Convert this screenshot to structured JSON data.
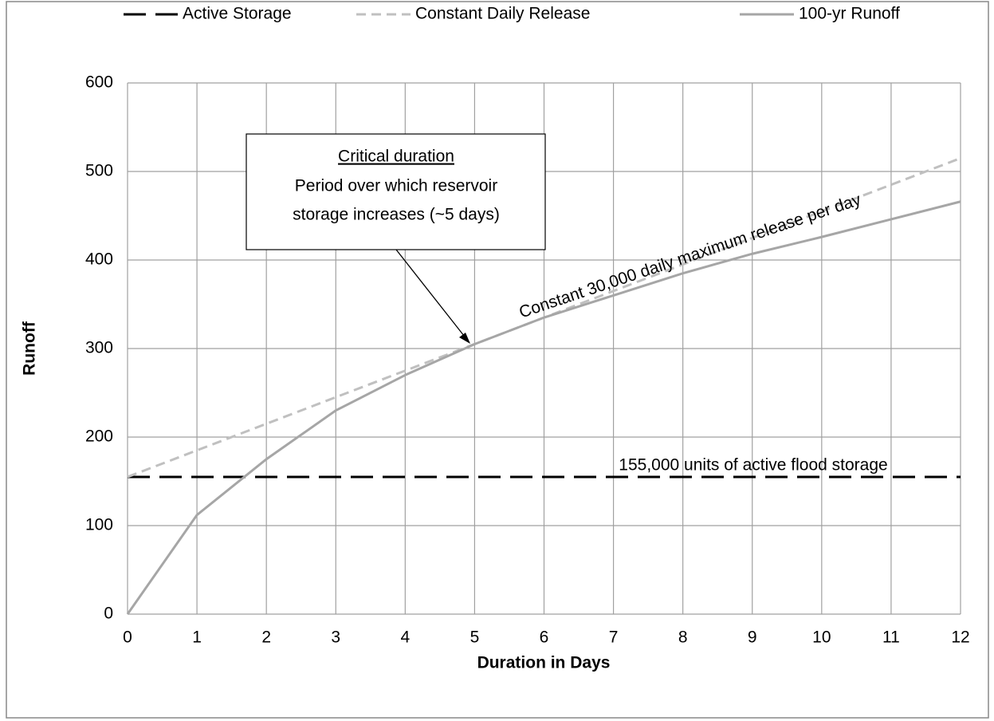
{
  "chart_data": {
    "type": "line",
    "x": [
      0,
      1,
      2,
      3,
      4,
      5,
      6,
      7,
      8,
      9,
      10,
      11,
      12
    ],
    "series": [
      {
        "name": "Active Storage",
        "color": "#000000",
        "dash": "long",
        "values": [
          155,
          155,
          155,
          155,
          155,
          155,
          155,
          155,
          155,
          155,
          155,
          155,
          155
        ]
      },
      {
        "name": "Constant Daily Release",
        "color": "#c0c0c0",
        "dash": "short",
        "values": [
          155,
          185,
          215,
          245,
          275,
          305,
          335,
          365,
          395,
          425,
          455,
          485,
          515
        ]
      },
      {
        "name": "100-yr Runoff",
        "color": "#a6a6a6",
        "dash": "solid",
        "values": [
          0,
          112,
          175,
          230,
          270,
          305,
          335,
          360,
          385,
          407,
          426,
          446,
          466
        ]
      }
    ],
    "xlabel": "Duration in Days",
    "ylabel": "Runoff",
    "xlim": [
      0,
      12
    ],
    "ylim": [
      0,
      600
    ],
    "xticks": [
      0,
      1,
      2,
      3,
      4,
      5,
      6,
      7,
      8,
      9,
      10,
      11,
      12
    ],
    "yticks": [
      0,
      100,
      200,
      300,
      400,
      500,
      600
    ],
    "grid": true,
    "legend": "top",
    "annotations": [
      {
        "lines": [
          "Critical duration",
          "Period over which reservoir",
          "storage increases (~5 days)"
        ]
      },
      {
        "text": "Constant 30,000 daily maximum release per day"
      },
      {
        "text": "155,000 units of active flood storage"
      }
    ]
  }
}
